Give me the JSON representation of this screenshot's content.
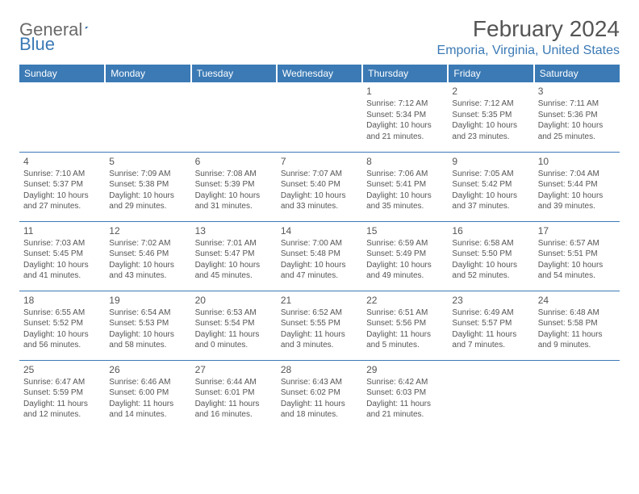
{
  "logo": {
    "general": "General",
    "blue": "Blue"
  },
  "title": "February 2024",
  "location": "Emporia, Virginia, United States",
  "colors": {
    "header_bg": "#3b7ab5",
    "header_text": "#ffffff",
    "border": "#3b7ab5",
    "text": "#555555",
    "logo_gray": "#6a6a6a",
    "logo_blue": "#3b7ab5"
  },
  "day_headers": [
    "Sunday",
    "Monday",
    "Tuesday",
    "Wednesday",
    "Thursday",
    "Friday",
    "Saturday"
  ],
  "weeks": [
    [
      null,
      null,
      null,
      null,
      {
        "n": "1",
        "sr": "7:12 AM",
        "ss": "5:34 PM",
        "dl": "10 hours and 21 minutes."
      },
      {
        "n": "2",
        "sr": "7:12 AM",
        "ss": "5:35 PM",
        "dl": "10 hours and 23 minutes."
      },
      {
        "n": "3",
        "sr": "7:11 AM",
        "ss": "5:36 PM",
        "dl": "10 hours and 25 minutes."
      }
    ],
    [
      {
        "n": "4",
        "sr": "7:10 AM",
        "ss": "5:37 PM",
        "dl": "10 hours and 27 minutes."
      },
      {
        "n": "5",
        "sr": "7:09 AM",
        "ss": "5:38 PM",
        "dl": "10 hours and 29 minutes."
      },
      {
        "n": "6",
        "sr": "7:08 AM",
        "ss": "5:39 PM",
        "dl": "10 hours and 31 minutes."
      },
      {
        "n": "7",
        "sr": "7:07 AM",
        "ss": "5:40 PM",
        "dl": "10 hours and 33 minutes."
      },
      {
        "n": "8",
        "sr": "7:06 AM",
        "ss": "5:41 PM",
        "dl": "10 hours and 35 minutes."
      },
      {
        "n": "9",
        "sr": "7:05 AM",
        "ss": "5:42 PM",
        "dl": "10 hours and 37 minutes."
      },
      {
        "n": "10",
        "sr": "7:04 AM",
        "ss": "5:44 PM",
        "dl": "10 hours and 39 minutes."
      }
    ],
    [
      {
        "n": "11",
        "sr": "7:03 AM",
        "ss": "5:45 PM",
        "dl": "10 hours and 41 minutes."
      },
      {
        "n": "12",
        "sr": "7:02 AM",
        "ss": "5:46 PM",
        "dl": "10 hours and 43 minutes."
      },
      {
        "n": "13",
        "sr": "7:01 AM",
        "ss": "5:47 PM",
        "dl": "10 hours and 45 minutes."
      },
      {
        "n": "14",
        "sr": "7:00 AM",
        "ss": "5:48 PM",
        "dl": "10 hours and 47 minutes."
      },
      {
        "n": "15",
        "sr": "6:59 AM",
        "ss": "5:49 PM",
        "dl": "10 hours and 49 minutes."
      },
      {
        "n": "16",
        "sr": "6:58 AM",
        "ss": "5:50 PM",
        "dl": "10 hours and 52 minutes."
      },
      {
        "n": "17",
        "sr": "6:57 AM",
        "ss": "5:51 PM",
        "dl": "10 hours and 54 minutes."
      }
    ],
    [
      {
        "n": "18",
        "sr": "6:55 AM",
        "ss": "5:52 PM",
        "dl": "10 hours and 56 minutes."
      },
      {
        "n": "19",
        "sr": "6:54 AM",
        "ss": "5:53 PM",
        "dl": "10 hours and 58 minutes."
      },
      {
        "n": "20",
        "sr": "6:53 AM",
        "ss": "5:54 PM",
        "dl": "11 hours and 0 minutes."
      },
      {
        "n": "21",
        "sr": "6:52 AM",
        "ss": "5:55 PM",
        "dl": "11 hours and 3 minutes."
      },
      {
        "n": "22",
        "sr": "6:51 AM",
        "ss": "5:56 PM",
        "dl": "11 hours and 5 minutes."
      },
      {
        "n": "23",
        "sr": "6:49 AM",
        "ss": "5:57 PM",
        "dl": "11 hours and 7 minutes."
      },
      {
        "n": "24",
        "sr": "6:48 AM",
        "ss": "5:58 PM",
        "dl": "11 hours and 9 minutes."
      }
    ],
    [
      {
        "n": "25",
        "sr": "6:47 AM",
        "ss": "5:59 PM",
        "dl": "11 hours and 12 minutes."
      },
      {
        "n": "26",
        "sr": "6:46 AM",
        "ss": "6:00 PM",
        "dl": "11 hours and 14 minutes."
      },
      {
        "n": "27",
        "sr": "6:44 AM",
        "ss": "6:01 PM",
        "dl": "11 hours and 16 minutes."
      },
      {
        "n": "28",
        "sr": "6:43 AM",
        "ss": "6:02 PM",
        "dl": "11 hours and 18 minutes."
      },
      {
        "n": "29",
        "sr": "6:42 AM",
        "ss": "6:03 PM",
        "dl": "11 hours and 21 minutes."
      },
      null,
      null
    ]
  ],
  "labels": {
    "sunrise": "Sunrise:",
    "sunset": "Sunset:",
    "daylight": "Daylight:"
  }
}
